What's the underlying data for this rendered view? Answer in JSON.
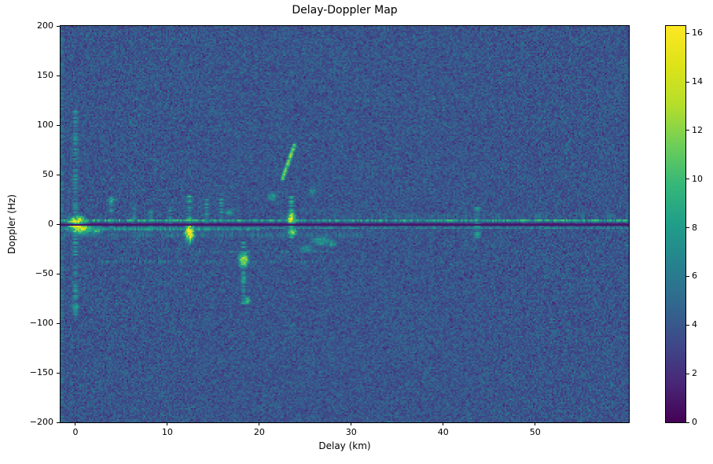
{
  "figure": {
    "background": "#ffffff",
    "text_color": "#000000",
    "spine_color": "#000000"
  },
  "chart_data": {
    "type": "heatmap",
    "title": "Delay-Doppler Map",
    "xlabel": "Delay (km)",
    "ylabel": "Doppler (Hz)",
    "x_range": [
      -1.62,
      60.2
    ],
    "y_range": [
      -200,
      200
    ],
    "grid": false,
    "legend": "colorbar-right",
    "x_ticks": {
      "values": [
        0,
        10,
        20,
        30,
        40,
        50
      ],
      "labels": [
        "0",
        "10",
        "20",
        "30",
        "40",
        "50"
      ]
    },
    "y_ticks": {
      "values": [
        200,
        150,
        100,
        50,
        0,
        -50,
        -100,
        -150,
        -200
      ],
      "labels": [
        "200",
        "150",
        "100",
        "50",
        "0",
        "−50",
        "−100",
        "−150",
        "−200"
      ]
    },
    "colorbar": {
      "min": 0,
      "max": 16.3,
      "ticks": [
        0,
        2,
        4,
        6,
        8,
        10,
        12,
        14,
        16
      ],
      "labels": [
        "0",
        "2",
        "4",
        "6",
        "8",
        "10",
        "12",
        "14",
        "16"
      ],
      "colormap": "viridis",
      "stops": [
        "#440154",
        "#482878",
        "#3e4989",
        "#31688e",
        "#26828e",
        "#1f9e89",
        "#35b779",
        "#6ece58",
        "#b5de2b",
        "#dde318",
        "#fde725"
      ]
    },
    "noise": {
      "seed": 42,
      "mean": 3.9,
      "spread": 1.2,
      "spike_prob": 0.05,
      "spike_amp": 1.3
    },
    "zero_doppler_line": {
      "doppler": -0.4,
      "value": 0.8,
      "color": "#0b0b22"
    },
    "features": [
      {
        "type": "hband",
        "y": 3.5,
        "hw": 1.3,
        "x1": -1.62,
        "x2": 60.2,
        "v": 9.8
      },
      {
        "type": "hband",
        "y": 3.5,
        "hw": 1.0,
        "x1": 8,
        "x2": 13,
        "v": 10.8
      },
      {
        "type": "hband",
        "y": 3.5,
        "hw": 1.0,
        "x1": 47,
        "x2": 53,
        "v": 10.5
      },
      {
        "type": "hband",
        "y": -4,
        "hw": 1.2,
        "x1": -1.62,
        "x2": 60.2,
        "v": 7.0
      },
      {
        "type": "hband",
        "y": -5,
        "hw": 2.0,
        "x1": -1.62,
        "x2": 20,
        "v": 8.3
      },
      {
        "type": "hband",
        "y": -11,
        "hw": 3.5,
        "x1": -1.62,
        "x2": 31,
        "v": 5.6
      },
      {
        "type": "hband",
        "y": 8,
        "hw": 4.0,
        "x1": 28,
        "x2": 60.2,
        "v": 5.1,
        "dash": true
      },
      {
        "type": "hband",
        "y": -38,
        "hw": 1.2,
        "x1": 2,
        "x2": 28.5,
        "v": 6.8,
        "dash": true
      },
      {
        "type": "hband",
        "y": -28,
        "hw": 1.1,
        "x1": 13,
        "x2": 28.5,
        "v": 6.3,
        "dash": true
      },
      {
        "type": "vline",
        "x": -1.45,
        "y1": -200,
        "y2": 200,
        "w": 0.25,
        "v": 5.3
      },
      {
        "type": "vline",
        "x": 0,
        "y1": -95,
        "y2": 115,
        "w": 0.35,
        "v": 6.8
      },
      {
        "type": "blob",
        "x": 0.2,
        "y": 1,
        "rx": 0.9,
        "ry": 6,
        "v": 15.5
      },
      {
        "type": "blob",
        "x": 0.6,
        "y": -5,
        "rx": 1.1,
        "ry": 5,
        "v": 12.5
      },
      {
        "type": "blob",
        "x": 2.2,
        "y": -6,
        "rx": 0.8,
        "ry": 4,
        "v": 9.5
      },
      {
        "type": "blob",
        "x": 0,
        "y": -83,
        "rx": 0.5,
        "ry": 4,
        "v": 7.5
      },
      {
        "type": "vline",
        "x": 3.9,
        "y1": -2,
        "y2": 28,
        "w": 0.3,
        "v": 7.0
      },
      {
        "type": "blob",
        "x": 3.9,
        "y": 24,
        "rx": 0.4,
        "ry": 4,
        "v": 8.5
      },
      {
        "type": "vline",
        "x": 6.4,
        "y1": -16,
        "y2": 18,
        "w": 0.3,
        "v": 6.4
      },
      {
        "type": "vline",
        "x": 8.2,
        "y1": -6,
        "y2": 22,
        "w": 0.3,
        "v": 6.6
      },
      {
        "type": "vline",
        "x": 10.3,
        "y1": -10,
        "y2": 16,
        "w": 0.28,
        "v": 6.2
      },
      {
        "type": "vline",
        "x": 12.4,
        "y1": -16,
        "y2": 28,
        "w": 0.32,
        "v": 8.0
      },
      {
        "type": "blob",
        "x": 12.4,
        "y": -9,
        "rx": 0.45,
        "ry": 8,
        "v": 15.5
      },
      {
        "type": "vline",
        "x": 14.3,
        "y1": -6,
        "y2": 24,
        "w": 0.3,
        "v": 6.8
      },
      {
        "type": "vline",
        "x": 15.9,
        "y1": -2,
        "y2": 30,
        "w": 0.3,
        "v": 7.0
      },
      {
        "type": "blob",
        "x": 16.8,
        "y": 12,
        "rx": 0.5,
        "ry": 4,
        "v": 7.5
      },
      {
        "type": "vline",
        "x": 18.3,
        "y1": -80,
        "y2": -18,
        "w": 0.3,
        "v": 7.2
      },
      {
        "type": "blob",
        "x": 18.3,
        "y": -36,
        "rx": 0.5,
        "ry": 7,
        "v": 12.5
      },
      {
        "type": "blob",
        "x": 18.7,
        "y": -77,
        "rx": 0.4,
        "ry": 4,
        "v": 9.5
      },
      {
        "type": "blob",
        "x": 18.3,
        "y": -55,
        "rx": 0.35,
        "ry": 5,
        "v": 8.0
      },
      {
        "type": "blob",
        "x": 21.4,
        "y": 28,
        "rx": 0.5,
        "ry": 5,
        "v": 7.5
      },
      {
        "type": "dline",
        "x1": 22.55,
        "y1": 46,
        "x2": 23.85,
        "y2": 80,
        "wx": 0.22,
        "wy": 2.2,
        "v": 10.5
      },
      {
        "type": "vline",
        "x": 23.5,
        "y1": -12,
        "y2": 28,
        "w": 0.3,
        "v": 8.5
      },
      {
        "type": "blob",
        "x": 23.5,
        "y": 5,
        "rx": 0.4,
        "ry": 7,
        "v": 14.5
      },
      {
        "type": "blob",
        "x": 23.6,
        "y": -8,
        "rx": 0.45,
        "ry": 4,
        "v": 11.5
      },
      {
        "type": "blob",
        "x": 25.2,
        "y": -25,
        "rx": 0.9,
        "ry": 4,
        "v": 7.0
      },
      {
        "type": "blob",
        "x": 26.8,
        "y": -17,
        "rx": 1.2,
        "ry": 5,
        "v": 7.8
      },
      {
        "type": "blob",
        "x": 27.9,
        "y": -20,
        "rx": 0.5,
        "ry": 4,
        "v": 7.2
      },
      {
        "type": "blob",
        "x": 25.8,
        "y": 33,
        "rx": 0.4,
        "ry": 6,
        "v": 6.8
      },
      {
        "type": "vline",
        "x": 43.7,
        "y1": -12,
        "y2": 16,
        "w": 0.4,
        "v": 7.2
      }
    ]
  }
}
